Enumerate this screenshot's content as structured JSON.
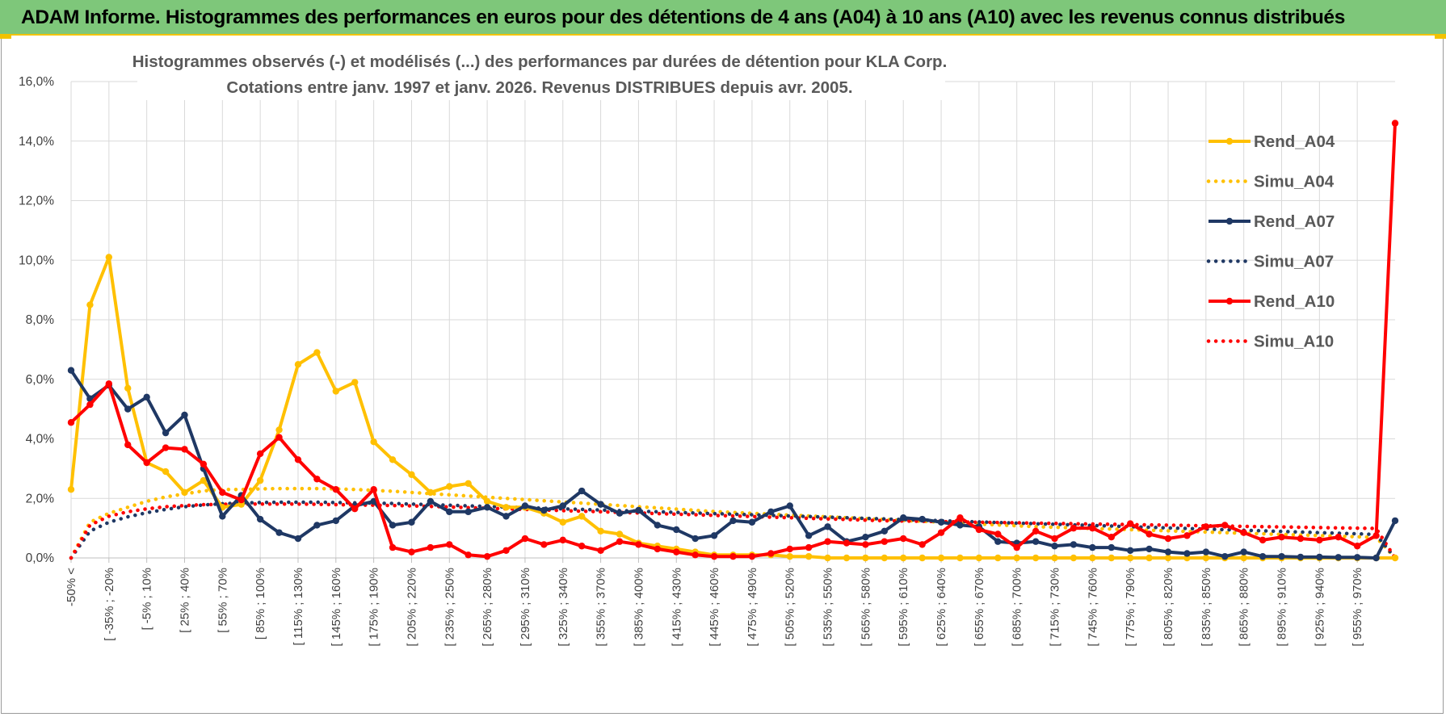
{
  "header": {
    "title": "ADAM Informe. Histogrammes des performances en euros pour des détentions de 4 ans (A04) à 10 ans (A10) avec les revenus connus distribués"
  },
  "colors": {
    "banner": "#7ec77a",
    "accent": "#f2c200",
    "A04": "#ffc000",
    "A07": "#1f3864",
    "A10": "#ff0000"
  },
  "chart_data": {
    "type": "line",
    "title": "Histogrammes observés (-) et modélisés (...) des performances par durées de détention pour KLA Corp.",
    "subtitle": "Cotations entre janv. 1997 et janv. 2026. Revenus DISTRIBUES depuis avr. 2005.",
    "xlabel": "",
    "ylabel": "",
    "ylim": [
      0,
      16
    ],
    "y_ticks": [
      0,
      2,
      4,
      6,
      8,
      10,
      12,
      14,
      16
    ],
    "y_tick_labels": [
      "0,0%",
      "2,0%",
      "4,0%",
      "6,0%",
      "8,0%",
      "10,0%",
      "12,0%",
      "14,0%",
      "16,0%"
    ],
    "grid": true,
    "legend_position": "right",
    "x_labels_visible": [
      "-50% <",
      "[ -35% ; -20%",
      "[ -5% ; 10%",
      "[ 25% ; 40%",
      "[ 55% ; 70%",
      "[ 85% ; 100%",
      "[ 115% ; 130%",
      "[ 145% ; 160%",
      "[ 175% ; 190%",
      "[ 205% ; 220%",
      "[ 235% ; 250%",
      "[ 265% ; 280%",
      "[ 295% ; 310%",
      "[ 325% ; 340%",
      "[ 355% ; 370%",
      "[ 385% ; 400%",
      "[ 415% ; 430%",
      "[ 445% ; 460%",
      "[ 475% ; 490%",
      "[ 505% ; 520%",
      "[ 535% ; 550%",
      "[ 565% ; 580%",
      "[ 595% ; 610%",
      "[ 625% ; 640%",
      "[ 655% ; 670%",
      "[ 685% ; 700%",
      "[ 715% ; 730%",
      "[ 745% ; 760%",
      "[ 775% ; 790%",
      "[ 805% ; 820%",
      "[ 835% ; 850%",
      "[ 865% ; 880%",
      "[ 895% ; 910%",
      "[ 925% ; 940%",
      "[ 955% ; 970%"
    ],
    "n_categories": 71,
    "series": [
      {
        "name": "Rend_A04",
        "style": "solid",
        "color": "#ffc000",
        "values": [
          2.3,
          8.5,
          10.1,
          5.7,
          3.2,
          2.9,
          2.2,
          2.6,
          1.7,
          1.8,
          2.6,
          4.3,
          6.5,
          6.9,
          5.6,
          5.9,
          3.9,
          3.3,
          2.8,
          2.2,
          2.4,
          2.5,
          1.9,
          1.7,
          1.7,
          1.5,
          1.2,
          1.4,
          0.9,
          0.8,
          0.5,
          0.4,
          0.3,
          0.2,
          0.1,
          0.1,
          0.1,
          0.1,
          0.05,
          0.05,
          0.0,
          0.0,
          0.0,
          0.0,
          0.0,
          0.0,
          0.0,
          0.0,
          0.0,
          0.0,
          0.0,
          0.0,
          0.0,
          0.0,
          0.0,
          0.0,
          0.0,
          0.0,
          0.0,
          0.0,
          0.0,
          0.0,
          0.0,
          0.0,
          0.0,
          0.0,
          0.0,
          0.0,
          0.0,
          0.0,
          0.0
        ]
      },
      {
        "name": "Simu_A04",
        "style": "dotted",
        "color": "#ffc000",
        "values": [
          0.0,
          1.2,
          1.5,
          1.7,
          1.9,
          2.05,
          2.15,
          2.25,
          2.3,
          2.3,
          2.32,
          2.33,
          2.33,
          2.33,
          2.32,
          2.3,
          2.27,
          2.24,
          2.2,
          2.16,
          2.12,
          2.08,
          2.04,
          2.0,
          1.96,
          1.92,
          1.88,
          1.84,
          1.8,
          1.76,
          1.72,
          1.68,
          1.64,
          1.6,
          1.56,
          1.53,
          1.5,
          1.47,
          1.44,
          1.41,
          1.38,
          1.35,
          1.32,
          1.29,
          1.26,
          1.23,
          1.2,
          1.17,
          1.14,
          1.11,
          1.08,
          1.05,
          1.03,
          1.01,
          0.99,
          0.97,
          0.95,
          0.93,
          0.91,
          0.89,
          0.87,
          0.85,
          0.83,
          0.81,
          0.79,
          0.77,
          0.75,
          0.73,
          0.71,
          0.69,
          0.0
        ]
      },
      {
        "name": "Rend_A07",
        "style": "solid",
        "color": "#1f3864",
        "values": [
          6.3,
          5.35,
          5.8,
          5.0,
          5.4,
          4.2,
          4.8,
          3.0,
          1.4,
          2.1,
          1.3,
          0.85,
          0.65,
          1.1,
          1.25,
          1.75,
          1.9,
          1.1,
          1.2,
          1.9,
          1.55,
          1.55,
          1.7,
          1.4,
          1.75,
          1.6,
          1.75,
          2.25,
          1.8,
          1.5,
          1.6,
          1.1,
          0.95,
          0.65,
          0.75,
          1.25,
          1.2,
          1.55,
          1.75,
          0.75,
          1.05,
          0.55,
          0.7,
          0.9,
          1.35,
          1.3,
          1.2,
          1.1,
          1.05,
          0.55,
          0.5,
          0.55,
          0.4,
          0.45,
          0.35,
          0.35,
          0.25,
          0.3,
          0.2,
          0.15,
          0.2,
          0.05,
          0.2,
          0.05,
          0.05,
          0.03,
          0.03,
          0.02,
          0.02,
          0.0,
          1.25
        ]
      },
      {
        "name": "Simu_A07",
        "style": "dotted",
        "color": "#1f3864",
        "values": [
          0.0,
          0.9,
          1.2,
          1.38,
          1.52,
          1.63,
          1.72,
          1.78,
          1.82,
          1.85,
          1.86,
          1.87,
          1.87,
          1.87,
          1.86,
          1.85,
          1.84,
          1.83,
          1.81,
          1.79,
          1.77,
          1.75,
          1.73,
          1.71,
          1.69,
          1.67,
          1.65,
          1.63,
          1.61,
          1.59,
          1.57,
          1.55,
          1.53,
          1.51,
          1.49,
          1.47,
          1.45,
          1.43,
          1.41,
          1.39,
          1.37,
          1.35,
          1.33,
          1.31,
          1.29,
          1.27,
          1.25,
          1.23,
          1.21,
          1.19,
          1.17,
          1.15,
          1.13,
          1.11,
          1.09,
          1.07,
          1.05,
          1.03,
          1.01,
          0.99,
          0.97,
          0.95,
          0.93,
          0.91,
          0.89,
          0.87,
          0.85,
          0.83,
          0.81,
          0.79,
          0.0
        ]
      },
      {
        "name": "Rend_A10",
        "style": "solid",
        "color": "#ff0000",
        "values": [
          4.55,
          5.15,
          5.85,
          3.8,
          3.2,
          3.7,
          3.65,
          3.15,
          2.2,
          1.95,
          3.5,
          4.05,
          3.3,
          2.65,
          2.3,
          1.65,
          2.3,
          0.35,
          0.2,
          0.35,
          0.45,
          0.1,
          0.05,
          0.25,
          0.65,
          0.45,
          0.6,
          0.4,
          0.25,
          0.55,
          0.45,
          0.3,
          0.2,
          0.1,
          0.05,
          0.05,
          0.05,
          0.15,
          0.3,
          0.35,
          0.55,
          0.5,
          0.45,
          0.55,
          0.65,
          0.45,
          0.85,
          1.35,
          0.95,
          0.8,
          0.35,
          0.9,
          0.65,
          1.0,
          1.0,
          0.7,
          1.15,
          0.8,
          0.65,
          0.75,
          1.05,
          1.1,
          0.85,
          0.6,
          0.7,
          0.65,
          0.6,
          0.7,
          0.4,
          0.75,
          14.6
        ]
      },
      {
        "name": "Simu_A10",
        "style": "dotted",
        "color": "#ff0000",
        "values": [
          0.0,
          1.1,
          1.4,
          1.55,
          1.65,
          1.72,
          1.76,
          1.79,
          1.8,
          1.81,
          1.81,
          1.81,
          1.81,
          1.8,
          1.79,
          1.78,
          1.77,
          1.76,
          1.75,
          1.73,
          1.71,
          1.69,
          1.67,
          1.65,
          1.63,
          1.61,
          1.59,
          1.57,
          1.55,
          1.53,
          1.51,
          1.49,
          1.47,
          1.45,
          1.43,
          1.41,
          1.39,
          1.37,
          1.35,
          1.33,
          1.31,
          1.29,
          1.27,
          1.25,
          1.24,
          1.23,
          1.22,
          1.21,
          1.2,
          1.19,
          1.18,
          1.17,
          1.16,
          1.15,
          1.14,
          1.13,
          1.12,
          1.11,
          1.1,
          1.09,
          1.08,
          1.07,
          1.06,
          1.05,
          1.04,
          1.03,
          1.02,
          1.01,
          1.0,
          0.99,
          0.0
        ]
      }
    ]
  }
}
